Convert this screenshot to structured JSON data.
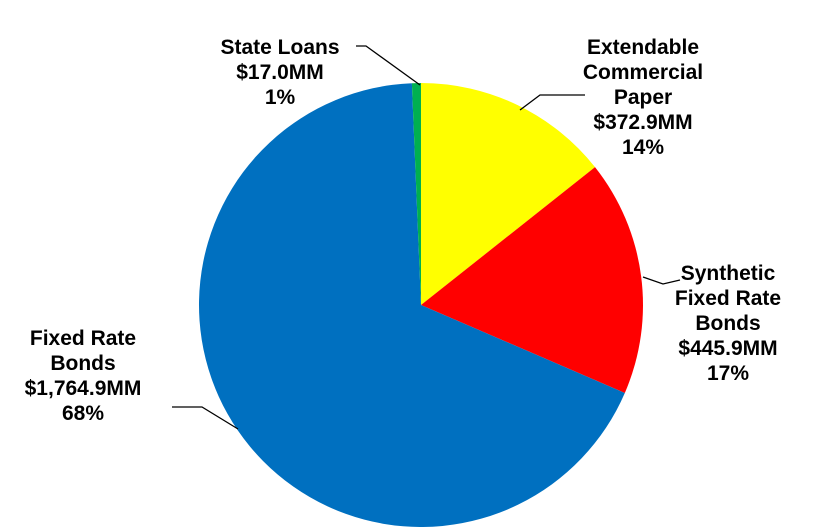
{
  "chart_data": {
    "type": "pie",
    "start_angle_deg": 0,
    "direction": "clockwise",
    "legend": "none",
    "slices": [
      {
        "name": "Extendable Commercial Paper",
        "label_lines": [
          "Extendable",
          "Commercial",
          "Paper"
        ],
        "value_text": "$372.9MM",
        "pct_text": "14%",
        "value": 372.9,
        "color": "#FFFF00"
      },
      {
        "name": "Synthetic Fixed Rate Bonds",
        "label_lines": [
          "Synthetic",
          "Fixed Rate",
          "Bonds"
        ],
        "value_text": "$445.9MM",
        "pct_text": "17%",
        "value": 445.9,
        "color": "#FF0000"
      },
      {
        "name": "Fixed Rate Bonds",
        "label_lines": [
          "Fixed Rate",
          "Bonds"
        ],
        "value_text": "$1,764.9MM",
        "pct_text": "68%",
        "value": 1764.9,
        "color": "#0070C0"
      },
      {
        "name": "State Loans",
        "label_lines": [
          "State Loans"
        ],
        "value_text": "$17.0MM",
        "pct_text": "1%",
        "value": 17.0,
        "color": "#00B050"
      }
    ]
  }
}
